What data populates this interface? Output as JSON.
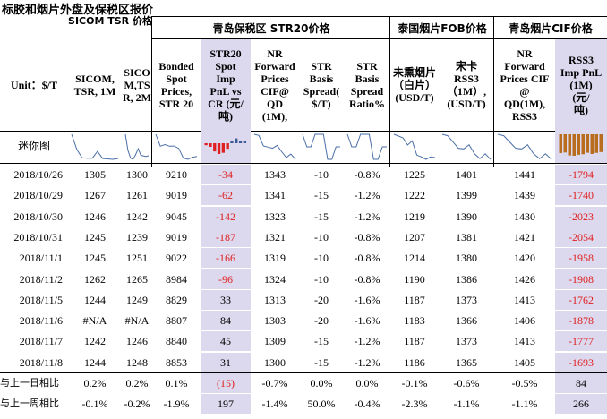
{
  "title": "标胶和烟片外盘及保税区报价",
  "groups": [
    "SICOM TSR 价格",
    "青岛保税区 STR20价格",
    "泰国烟片FOB价格",
    "青岛烟片CIF价格"
  ],
  "headers": [
    "Unit：$/T",
    "SICOM,\nTSR, 1M",
    "SICO\nM,TS\nR, 2M",
    "Bonded\nSpot\nPrices,\nSTR 20",
    "STR20\nSpot\nImp\nPnL vs\nCR (元/\n吨)",
    "NR\nForward\nPrices\nCIF@\nQD\n(1M),",
    "STR\nBasis\nSpread(\n$/T)",
    "STR\nBasis\nSpread\nRatio%",
    "未熏烟片\n（白片）\n(USD/T)",
    "宋卡\nRSS3\n（1M）,\n(USD/T)",
    "NR\nForward\nPrices CIF\n@\nQD(1M),\nRSS3",
    "RSS3\nImp PnL\n(1M)\n(元/\n吨)"
  ],
  "mini_label": "迷你图",
  "rows": [
    [
      "2018/10/26",
      "1305",
      "1300",
      "9210",
      "-34",
      "1343",
      "-10",
      "-0.8%",
      "1225",
      "1401",
      "1441",
      "-1794"
    ],
    [
      "2018/10/29",
      "1267",
      "1261",
      "9019",
      "-62",
      "1341",
      "-15",
      "-1.2%",
      "1222",
      "1399",
      "1439",
      "-1740"
    ],
    [
      "2018/10/30",
      "1246",
      "1242",
      "9045",
      "-142",
      "1323",
      "-15",
      "-1.2%",
      "1219",
      "1390",
      "1430",
      "-2023"
    ],
    [
      "2018/10/31",
      "1245",
      "1239",
      "9019",
      "-187",
      "1321",
      "-10",
      "-0.8%",
      "1207",
      "1381",
      "1421",
      "-2054"
    ],
    [
      "2018/11/1",
      "1245",
      "1251",
      "9022",
      "-166",
      "1319",
      "-10",
      "-0.8%",
      "1214",
      "1380",
      "1420",
      "-1958"
    ],
    [
      "2018/11/2",
      "1262",
      "1265",
      "8984",
      "-96",
      "1324",
      "-10",
      "-0.8%",
      "1190",
      "1386",
      "1426",
      "-1908"
    ],
    [
      "2018/11/5",
      "1244",
      "1249",
      "8829",
      "33",
      "1313",
      "-20",
      "-1.6%",
      "1187",
      "1373",
      "1413",
      "-1762"
    ],
    [
      "2018/11/6",
      "#N/A",
      "#N/A",
      "8807",
      "84",
      "1303",
      "-20",
      "-1.6%",
      "1183",
      "1366",
      "1406",
      "-1878"
    ],
    [
      "2018/11/7",
      "1242",
      "1246",
      "8840",
      "45",
      "1309",
      "-15",
      "-1.2%",
      "1187",
      "1373",
      "1413",
      "-1777"
    ],
    [
      "2018/11/8",
      "1244",
      "1248",
      "8853",
      "31",
      "1300",
      "-15",
      "-1.2%",
      "1186",
      "1365",
      "1405",
      "-1693"
    ],
    [
      "与上一日相比",
      "0.2%",
      "0.2%",
      "0.1%",
      "(15)",
      "-0.7%",
      "0.0%",
      "0.0%",
      "-0.1%",
      "-0.6%",
      "-0.5%",
      "84"
    ],
    [
      "与上一周相比",
      "-0.1%",
      "-0.2%",
      "-1.9%",
      "197",
      "-1.4%",
      "50.0%",
      "-0.4%",
      "-2.3%",
      "-1.1%",
      "-1.1%",
      "266"
    ]
  ],
  "colors": {
    "highlight": "#dcd8ee",
    "negative": "#e02020",
    "spark_line": "#4a6ea8",
    "spark_bar": "#b86d1e",
    "spark_bar_pos": "#3a5a98"
  }
}
